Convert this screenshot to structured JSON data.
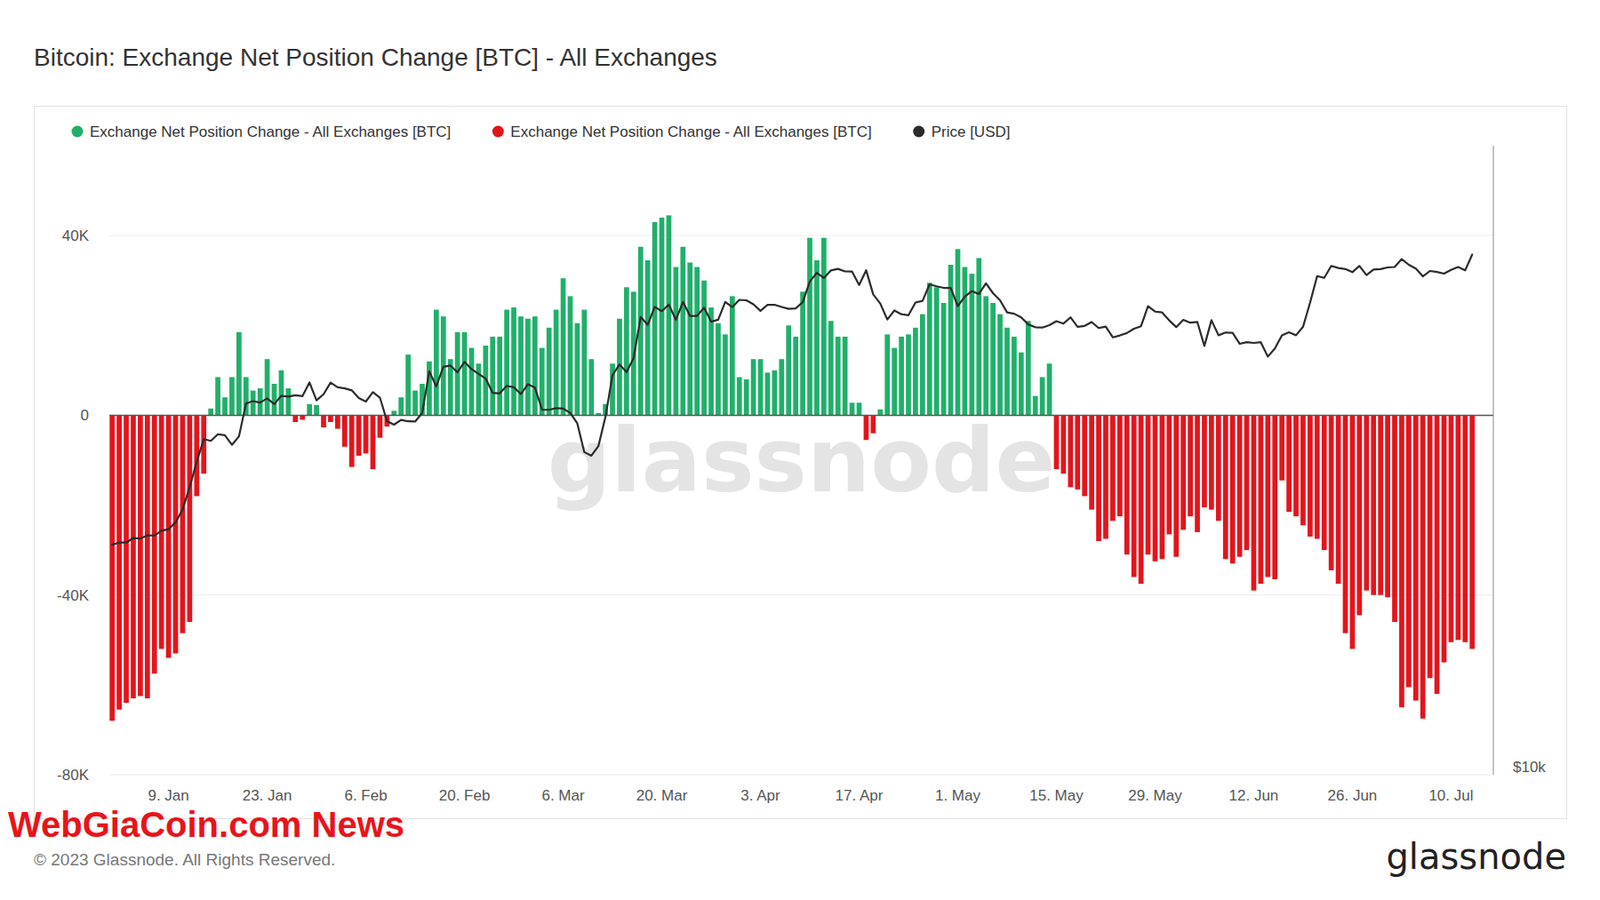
{
  "chart_data": {
    "type": "bar",
    "title": "Bitcoin: Exchange Net Position Change [BTC] - All Exchanges",
    "watermark": "glassnode",
    "copyright": "© 2023 Glassnode. All Rights Reserved.",
    "logo": "glassnode",
    "banner": "WebGiaCoin.com News",
    "legend": "top-left",
    "grid": true,
    "stacked": true,
    "log": "y2",
    "ylim": [
      -80000,
      60000
    ],
    "yticks": [
      {
        "value": -80000,
        "label": "-80K"
      },
      {
        "value": -40000,
        "label": "-40K"
      },
      0,
      {
        "value": 40000,
        "label": "40K"
      }
    ],
    "y2lim": [
      10000,
      40000
    ],
    "y2ticks": [
      {
        "value": 10000,
        "label": "$10k"
      }
    ],
    "categories": [
      null,
      null,
      null,
      null,
      null,
      null,
      null,
      null,
      "9. Jan",
      null,
      null,
      null,
      null,
      null,
      null,
      null,
      null,
      null,
      null,
      null,
      null,
      null,
      "23. Jan",
      null,
      null,
      null,
      null,
      null,
      null,
      null,
      null,
      null,
      null,
      null,
      null,
      null,
      "6. Feb",
      null,
      null,
      null,
      null,
      null,
      null,
      null,
      null,
      null,
      null,
      null,
      null,
      null,
      "20. Feb",
      null,
      null,
      null,
      null,
      null,
      null,
      null,
      null,
      null,
      null,
      null,
      null,
      null,
      "6. Mar",
      null,
      null,
      null,
      null,
      null,
      null,
      null,
      null,
      null,
      null,
      null,
      null,
      null,
      "20. Mar",
      null,
      null,
      null,
      null,
      null,
      null,
      null,
      null,
      null,
      null,
      null,
      null,
      null,
      "3. Apr",
      null,
      null,
      null,
      null,
      null,
      null,
      null,
      null,
      null,
      null,
      null,
      null,
      null,
      "17. Apr",
      null,
      null,
      null,
      null,
      null,
      null,
      null,
      null,
      null,
      null,
      null,
      null,
      null,
      "1. May",
      null,
      null,
      null,
      null,
      null,
      null,
      null,
      null,
      null,
      null,
      null,
      null,
      null,
      "15. May",
      null,
      null,
      null,
      null,
      null,
      null,
      null,
      null,
      null,
      null,
      null,
      null,
      null,
      "29. May",
      null,
      null,
      null,
      null,
      null,
      null,
      null,
      null,
      null,
      null,
      null,
      null,
      null,
      "12. Jun",
      null,
      null,
      null,
      null,
      null,
      null,
      null,
      null,
      null,
      null,
      null,
      null,
      null,
      "26. Jun",
      null,
      null,
      null,
      null,
      null,
      null,
      null,
      null,
      null,
      null,
      null,
      null,
      null,
      "10. Jul",
      null,
      null,
      null
    ],
    "series": [
      {
        "name": "Exchange Net Position Change - All Exchanges [BTC]",
        "type": "bar",
        "color": "#1fb06a",
        "values": [
          null,
          null,
          null,
          null,
          null,
          null,
          null,
          null,
          null,
          null,
          null,
          null,
          null,
          null,
          1500,
          8500,
          4000,
          8500,
          18500,
          8500,
          5500,
          6000,
          12500,
          7000,
          10000,
          6000,
          null,
          null,
          2500,
          2300,
          null,
          null,
          null,
          null,
          null,
          null,
          null,
          null,
          null,
          null,
          1000,
          4000,
          13500,
          5500,
          7000,
          12000,
          23500,
          22000,
          12500,
          18500,
          18500,
          15000,
          11500,
          15500,
          17500,
          17500,
          23500,
          24000,
          22000,
          21500,
          22000,
          15000,
          19500,
          23500,
          30500,
          26500,
          20500,
          23500,
          12500,
          500,
          2500,
          11500,
          21500,
          28500,
          27500,
          37500,
          34500,
          43000,
          44000,
          44500,
          33000,
          37500,
          34000,
          33000,
          30000,
          24000,
          20500,
          18000,
          26500,
          8500,
          8000,
          12500,
          12500,
          9500,
          10000,
          12500,
          20000,
          17500,
          27500,
          39500,
          34500,
          39500,
          21000,
          17500,
          17500,
          2800,
          2800,
          null,
          null,
          1300,
          18000,
          15000,
          17500,
          18000,
          19500,
          22500,
          29500,
          28500,
          25000,
          33500,
          37000,
          33000,
          31500,
          35000,
          26500,
          25000,
          22500,
          19500,
          17500,
          14000,
          21000,
          4300,
          8500,
          11500,
          null,
          null,
          null,
          null,
          null,
          null,
          null,
          null,
          null,
          null,
          null,
          null,
          null,
          null,
          null,
          null,
          null,
          null,
          null,
          null,
          null,
          null,
          null,
          null,
          null,
          null,
          null,
          null,
          null,
          null,
          null,
          null,
          null,
          null,
          null,
          null,
          null,
          null,
          null,
          null,
          null,
          null,
          null,
          null,
          null,
          null,
          null,
          null,
          null,
          null,
          null,
          null,
          null,
          null,
          null,
          null,
          null,
          null,
          null,
          null
        ]
      },
      {
        "name": "Exchange Net Position Change - All Exchanges [BTC]",
        "type": "bar",
        "color": "#e4141c",
        "values": [
          -68000,
          -65500,
          -64000,
          -63000,
          -62500,
          -63000,
          -57500,
          -52000,
          -54000,
          -53000,
          -48500,
          -46000,
          -18000,
          -13000,
          null,
          null,
          null,
          null,
          null,
          null,
          null,
          null,
          null,
          null,
          null,
          null,
          -1500,
          -1000,
          null,
          null,
          -2700,
          -1500,
          -3000,
          -7000,
          -11500,
          -9000,
          -8500,
          -12000,
          -5000,
          -2500,
          null,
          null,
          null,
          null,
          null,
          null,
          null,
          null,
          null,
          null,
          null,
          null,
          null,
          null,
          null,
          null,
          null,
          null,
          null,
          null,
          null,
          null,
          null,
          null,
          null,
          null,
          null,
          null,
          null,
          null,
          null,
          null,
          null,
          null,
          null,
          null,
          null,
          null,
          null,
          null,
          null,
          null,
          null,
          null,
          null,
          null,
          null,
          null,
          null,
          null,
          null,
          null,
          null,
          null,
          null,
          null,
          null,
          null,
          null,
          null,
          null,
          null,
          null,
          null,
          null,
          null,
          null,
          -5500,
          -4000,
          null,
          null,
          null,
          null,
          null,
          null,
          null,
          null,
          null,
          null,
          null,
          null,
          null,
          null,
          null,
          null,
          null,
          null,
          null,
          null,
          null,
          null,
          null,
          null,
          null,
          -12000,
          -13000,
          -16000,
          -16500,
          -18000,
          -21000,
          -28000,
          -27500,
          -23500,
          -22500,
          -31000,
          -36000,
          -37500,
          -31000,
          -32500,
          -32000,
          -26500,
          -31500,
          -25500,
          -22500,
          -26000,
          -20500,
          -21000,
          -23500,
          -32000,
          -33000,
          -31500,
          -30000,
          -39000,
          -37500,
          -36000,
          -36500,
          -14500,
          -21500,
          -22500,
          -24500,
          -27000,
          -27500,
          -30000,
          -34500,
          -37500,
          -48500,
          -52000,
          -44500,
          -39000,
          -40000,
          -40000,
          -40500,
          -46000,
          -65000,
          -60500,
          -63500,
          -67500,
          -58500,
          -62000,
          -55000,
          -50500,
          -50000,
          -50500,
          -52000
        ]
      },
      {
        "name": "Price [USD]",
        "type": "line",
        "axis": "y2",
        "color": "#2b2b2b",
        "values": [
          16600,
          16680,
          16680,
          16850,
          16830,
          16950,
          16940,
          17120,
          17180,
          17440,
          17940,
          18850,
          19930,
          20950,
          20870,
          21180,
          21130,
          20690,
          21080,
          22670,
          22780,
          22710,
          22920,
          22630,
          23050,
          23010,
          23080,
          23030,
          23740,
          22820,
          23130,
          23730,
          23490,
          23430,
          23330,
          22940,
          22760,
          23240,
          22960,
          21800,
          21630,
          21860,
          21790,
          21780,
          22200,
          24330,
          23530,
          24570,
          24640,
          24280,
          24840,
          24450,
          24190,
          23950,
          23200,
          23170,
          23560,
          23490,
          23140,
          23650,
          23470,
          22360,
          22350,
          22430,
          22410,
          22200,
          21700,
          20360,
          20200,
          20630,
          22000,
          24120,
          24700,
          24290,
          25050,
          27420,
          26960,
          28040,
          27780,
          28180,
          27250,
          28350,
          27490,
          27490,
          27990,
          27140,
          27260,
          28350,
          28030,
          28480,
          28450,
          28200,
          27800,
          28170,
          28170,
          28040,
          27920,
          27950,
          28330,
          29650,
          30230,
          29880,
          30390,
          30490,
          30320,
          30310,
          29430,
          30400,
          28820,
          28250,
          27270,
          27820,
          27590,
          27530,
          28310,
          28420,
          29470,
          29340,
          29240,
          29230,
          28090,
          28680,
          29030,
          28850,
          29540,
          28900,
          28450,
          27700,
          27620,
          27400,
          26980,
          26810,
          26790,
          26930,
          27170,
          27030,
          27400,
          26830,
          26890,
          27120,
          26760,
          26850,
          26220,
          26330,
          26470,
          26720,
          26870,
          28080,
          27750,
          27700,
          27220,
          26820,
          27250,
          27080,
          27120,
          25730,
          27230,
          26340,
          26500,
          26480,
          25850,
          25940,
          25900,
          25940,
          25130,
          25580,
          26330,
          26510,
          26340,
          26840,
          28310,
          30010,
          29890,
          30690,
          30550,
          30480,
          30270,
          30690,
          30080,
          30450,
          30480,
          30590,
          30620,
          31160,
          30770,
          30510,
          29990,
          30350,
          30280,
          30170,
          30420,
          30620,
          30390,
          31470
        ]
      }
    ]
  }
}
